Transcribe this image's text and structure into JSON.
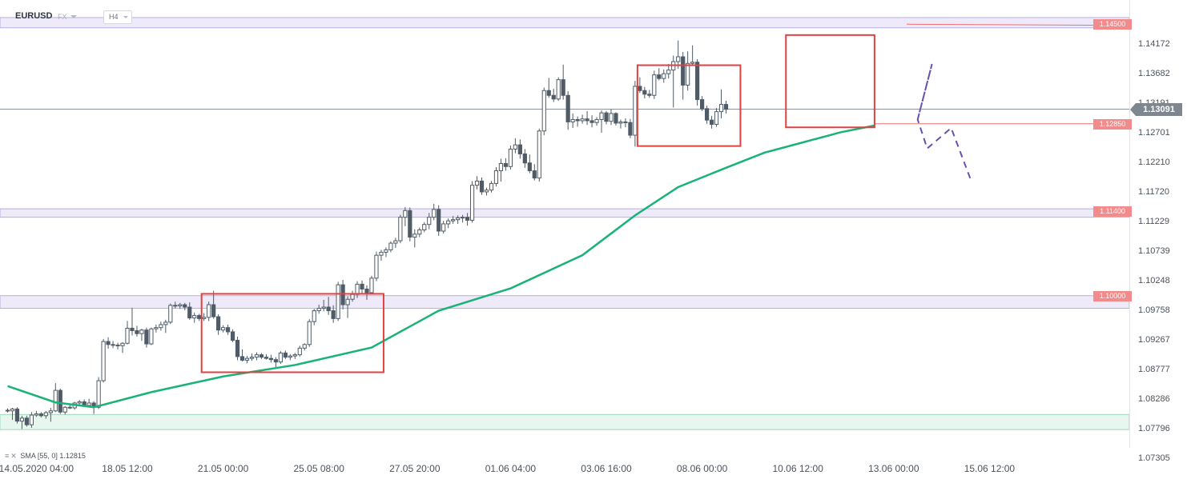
{
  "header": {
    "symbol": "EURUSD",
    "market": "FX",
    "timeframe": "H4"
  },
  "indicator": {
    "label": "SMA [55, 0] 1.12815"
  },
  "current_price": "1.13091",
  "colors": {
    "candle_up": "#ffffff",
    "candle_down": "#4f5b66",
    "candle_outline": "#4f5b66",
    "sma": "#19b377",
    "level_line": "#f07070",
    "level_tag": "#f28b8b",
    "zone_fill": "#eeeafa",
    "zone_border": "#b9aee0",
    "support_fill": "#e7f7ef",
    "support_border": "#9fd6bd",
    "box": "#e04040",
    "projection": "#6a4fb0",
    "price_tag": "#7e8690"
  },
  "chart_data": {
    "type": "candlestick",
    "title": "",
    "xlabel": "",
    "ylabel": "",
    "ylim": [
      1.07305,
      1.14662
    ],
    "grid": false,
    "y_ticks": [
      "1.14172",
      "1.13682",
      "1.13191",
      "1.12701",
      "1.12210",
      "1.11720",
      "1.11229",
      "1.10739",
      "1.10248",
      "1.09758",
      "1.09267",
      "1.08777",
      "1.08286",
      "1.07796",
      "1.07305"
    ],
    "x_ticks": [
      {
        "label": "14.05.2020  04:00",
        "index": 6
      },
      {
        "label": "18.05  12:00",
        "index": 25
      },
      {
        "label": "21.05  00:00",
        "index": 45
      },
      {
        "label": "25.05  08:00",
        "index": 65
      },
      {
        "label": "27.05  20:00",
        "index": 85
      },
      {
        "label": "01.06  04:00",
        "index": 105
      },
      {
        "label": "03.06  16:00",
        "index": 125
      },
      {
        "label": "08.06  00:00",
        "index": 145
      },
      {
        "label": "10.06  12:00",
        "index": 165
      },
      {
        "label": "13.06  00:00",
        "index": 185
      },
      {
        "label": "15.06  12:00",
        "index": 205
      }
    ],
    "levels": [
      {
        "label": "1.14500",
        "value": 1.145,
        "zone": [
          1.1444,
          1.1461
        ]
      },
      {
        "label": "1.12850",
        "value": 1.1285
      },
      {
        "label": "1.11400",
        "value": 1.114,
        "zone": [
          1.113,
          1.1144
        ]
      },
      {
        "label": "1.10000",
        "value": 1.1,
        "zone": [
          1.0979,
          1.1
        ]
      }
    ],
    "support_zone": [
      1.0778,
      1.0803
    ],
    "boxes": [
      {
        "from_index": 40.5,
        "to_index": 78.5,
        "top": 1.1003,
        "bottom": 1.0873
      },
      {
        "from_index": 131.5,
        "to_index": 153,
        "top": 1.1382,
        "bottom": 1.1248
      },
      {
        "from_index": 162.5,
        "to_index": 181,
        "top": 1.1432,
        "bottom": 1.1279
      }
    ],
    "projection": [
      {
        "index": 190,
        "value": 1.1292
      },
      {
        "index": 193,
        "value": 1.1384
      },
      {
        "index": 190,
        "value": 1.1292
      },
      {
        "index": 192,
        "value": 1.1244
      },
      {
        "index": 197,
        "value": 1.1278
      },
      {
        "index": 201,
        "value": 1.1194
      }
    ],
    "candles": [
      {
        "o": 1.081,
        "h": 1.0813,
        "l": 1.0806,
        "c": 1.0809
      },
      {
        "o": 1.0809,
        "h": 1.0814,
        "l": 1.0794,
        "c": 1.0812
      },
      {
        "o": 1.0812,
        "h": 1.0815,
        "l": 1.0788,
        "c": 1.0792
      },
      {
        "o": 1.0792,
        "h": 1.0801,
        "l": 1.0779,
        "c": 1.0797
      },
      {
        "o": 1.0797,
        "h": 1.0801,
        "l": 1.0783,
        "c": 1.0786
      },
      {
        "o": 1.0786,
        "h": 1.0807,
        "l": 1.0781,
        "c": 1.0802
      },
      {
        "o": 1.0802,
        "h": 1.0809,
        "l": 1.0799,
        "c": 1.0804
      },
      {
        "o": 1.0804,
        "h": 1.0807,
        "l": 1.0798,
        "c": 1.0801
      },
      {
        "o": 1.0801,
        "h": 1.0809,
        "l": 1.0796,
        "c": 1.0806
      },
      {
        "o": 1.0806,
        "h": 1.0814,
        "l": 1.0791,
        "c": 1.0809
      },
      {
        "o": 1.0809,
        "h": 1.0855,
        "l": 1.0807,
        "c": 1.0843
      },
      {
        "o": 1.0843,
        "h": 1.0846,
        "l": 1.0804,
        "c": 1.0807
      },
      {
        "o": 1.0807,
        "h": 1.0817,
        "l": 1.0803,
        "c": 1.0815
      },
      {
        "o": 1.0815,
        "h": 1.0819,
        "l": 1.0812,
        "c": 1.0814
      },
      {
        "o": 1.0814,
        "h": 1.0824,
        "l": 1.0811,
        "c": 1.0822
      },
      {
        "o": 1.0822,
        "h": 1.0827,
        "l": 1.0817,
        "c": 1.0824
      },
      {
        "o": 1.0824,
        "h": 1.0828,
        "l": 1.0818,
        "c": 1.0818
      },
      {
        "o": 1.0818,
        "h": 1.0829,
        "l": 1.0815,
        "c": 1.0822
      },
      {
        "o": 1.0822,
        "h": 1.0825,
        "l": 1.0804,
        "c": 1.0815
      },
      {
        "o": 1.0815,
        "h": 1.0865,
        "l": 1.0812,
        "c": 1.0859
      },
      {
        "o": 1.0859,
        "h": 1.0928,
        "l": 1.0856,
        "c": 1.0924
      },
      {
        "o": 1.0924,
        "h": 1.0931,
        "l": 1.0912,
        "c": 1.0919
      },
      {
        "o": 1.0919,
        "h": 1.0925,
        "l": 1.0913,
        "c": 1.0918
      },
      {
        "o": 1.0918,
        "h": 1.0922,
        "l": 1.0911,
        "c": 1.0917
      },
      {
        "o": 1.0917,
        "h": 1.0923,
        "l": 1.0905,
        "c": 1.0921
      },
      {
        "o": 1.0921,
        "h": 1.0958,
        "l": 1.0919,
        "c": 1.0946
      },
      {
        "o": 1.0946,
        "h": 1.098,
        "l": 1.0934,
        "c": 1.0942
      },
      {
        "o": 1.0942,
        "h": 1.095,
        "l": 1.0932,
        "c": 1.0937
      },
      {
        "o": 1.0937,
        "h": 1.0945,
        "l": 1.0925,
        "c": 1.0943
      },
      {
        "o": 1.0943,
        "h": 1.0947,
        "l": 1.0914,
        "c": 1.092
      },
      {
        "o": 1.092,
        "h": 1.0947,
        "l": 1.0918,
        "c": 1.0945
      },
      {
        "o": 1.0945,
        "h": 1.0952,
        "l": 1.0939,
        "c": 1.0947
      },
      {
        "o": 1.0947,
        "h": 1.0957,
        "l": 1.0942,
        "c": 1.0952
      },
      {
        "o": 1.0952,
        "h": 1.096,
        "l": 1.0938,
        "c": 1.0956
      },
      {
        "o": 1.0956,
        "h": 1.0987,
        "l": 1.0953,
        "c": 1.0984
      },
      {
        "o": 1.0984,
        "h": 1.099,
        "l": 1.0979,
        "c": 1.0983
      },
      {
        "o": 1.0983,
        "h": 1.0988,
        "l": 1.0978,
        "c": 1.0985
      },
      {
        "o": 1.0985,
        "h": 1.0988,
        "l": 1.0976,
        "c": 1.0981
      },
      {
        "o": 1.0981,
        "h": 1.0989,
        "l": 1.096,
        "c": 1.0963
      },
      {
        "o": 1.0963,
        "h": 1.0972,
        "l": 1.0955,
        "c": 1.0967
      },
      {
        "o": 1.0967,
        "h": 1.097,
        "l": 1.0958,
        "c": 1.0962
      },
      {
        "o": 1.0962,
        "h": 1.0971,
        "l": 1.0958,
        "c": 1.0964
      },
      {
        "o": 1.0964,
        "h": 1.099,
        "l": 1.0958,
        "c": 1.0985
      },
      {
        "o": 1.0985,
        "h": 1.1008,
        "l": 1.0962,
        "c": 1.0965
      },
      {
        "o": 1.0965,
        "h": 1.0969,
        "l": 1.0935,
        "c": 1.0943
      },
      {
        "o": 1.0943,
        "h": 1.0951,
        "l": 1.0939,
        "c": 1.0947
      },
      {
        "o": 1.0947,
        "h": 1.0952,
        "l": 1.0935,
        "c": 1.094
      },
      {
        "o": 1.094,
        "h": 1.0944,
        "l": 1.0923,
        "c": 1.0926
      },
      {
        "o": 1.0926,
        "h": 1.0932,
        "l": 1.0893,
        "c": 1.0899
      },
      {
        "o": 1.0899,
        "h": 1.0911,
        "l": 1.0891,
        "c": 1.0893
      },
      {
        "o": 1.0893,
        "h": 1.09,
        "l": 1.0888,
        "c": 1.0896
      },
      {
        "o": 1.0896,
        "h": 1.0904,
        "l": 1.0892,
        "c": 1.0898
      },
      {
        "o": 1.0898,
        "h": 1.0906,
        "l": 1.0893,
        "c": 1.0902
      },
      {
        "o": 1.0902,
        "h": 1.0905,
        "l": 1.0895,
        "c": 1.0898
      },
      {
        "o": 1.0898,
        "h": 1.0903,
        "l": 1.0894,
        "c": 1.0896
      },
      {
        "o": 1.0896,
        "h": 1.0902,
        "l": 1.0889,
        "c": 1.0894
      },
      {
        "o": 1.0894,
        "h": 1.0898,
        "l": 1.0881,
        "c": 1.089
      },
      {
        "o": 1.089,
        "h": 1.0908,
        "l": 1.0887,
        "c": 1.0905
      },
      {
        "o": 1.0905,
        "h": 1.0909,
        "l": 1.0895,
        "c": 1.0898
      },
      {
        "o": 1.0898,
        "h": 1.0903,
        "l": 1.0893,
        "c": 1.09
      },
      {
        "o": 1.09,
        "h": 1.0905,
        "l": 1.0895,
        "c": 1.0902
      },
      {
        "o": 1.0902,
        "h": 1.0917,
        "l": 1.0899,
        "c": 1.0913
      },
      {
        "o": 1.0913,
        "h": 1.0921,
        "l": 1.0909,
        "c": 1.0919
      },
      {
        "o": 1.0919,
        "h": 1.0961,
        "l": 1.0915,
        "c": 1.0957
      },
      {
        "o": 1.0957,
        "h": 1.0978,
        "l": 1.0951,
        "c": 1.0975
      },
      {
        "o": 1.0975,
        "h": 1.0985,
        "l": 1.097,
        "c": 1.0979
      },
      {
        "o": 1.0979,
        "h": 1.0993,
        "l": 1.0974,
        "c": 1.0981
      },
      {
        "o": 1.0981,
        "h": 1.0998,
        "l": 1.0968,
        "c": 1.0975
      },
      {
        "o": 1.0975,
        "h": 1.0984,
        "l": 1.0955,
        "c": 1.0962
      },
      {
        "o": 1.0962,
        "h": 1.1023,
        "l": 1.0958,
        "c": 1.1018
      },
      {
        "o": 1.1018,
        "h": 1.1026,
        "l": 1.0977,
        "c": 1.0985
      },
      {
        "o": 1.0985,
        "h": 1.0999,
        "l": 1.0963,
        "c": 1.0994
      },
      {
        "o": 1.0994,
        "h": 1.1008,
        "l": 1.099,
        "c": 1.1002
      },
      {
        "o": 1.1002,
        "h": 1.1024,
        "l": 1.0996,
        "c": 1.1019
      },
      {
        "o": 1.1019,
        "h": 1.1025,
        "l": 1.1004,
        "c": 1.1011
      },
      {
        "o": 1.1011,
        "h": 1.1017,
        "l": 1.0993,
        "c": 1.1005
      },
      {
        "o": 1.1005,
        "h": 1.1033,
        "l": 1.1002,
        "c": 1.1029
      },
      {
        "o": 1.1029,
        "h": 1.1073,
        "l": 1.1024,
        "c": 1.1067
      },
      {
        "o": 1.1067,
        "h": 1.1076,
        "l": 1.1058,
        "c": 1.1072
      },
      {
        "o": 1.1072,
        "h": 1.108,
        "l": 1.1064,
        "c": 1.1076
      },
      {
        "o": 1.1076,
        "h": 1.109,
        "l": 1.1072,
        "c": 1.1087
      },
      {
        "o": 1.1087,
        "h": 1.1096,
        "l": 1.1079,
        "c": 1.1091
      },
      {
        "o": 1.1091,
        "h": 1.1134,
        "l": 1.1087,
        "c": 1.113
      },
      {
        "o": 1.113,
        "h": 1.1147,
        "l": 1.1115,
        "c": 1.1141
      },
      {
        "o": 1.1141,
        "h": 1.1146,
        "l": 1.109,
        "c": 1.1097
      },
      {
        "o": 1.1097,
        "h": 1.111,
        "l": 1.108,
        "c": 1.1102
      },
      {
        "o": 1.1102,
        "h": 1.1113,
        "l": 1.1097,
        "c": 1.1109
      },
      {
        "o": 1.1109,
        "h": 1.1122,
        "l": 1.1105,
        "c": 1.1118
      },
      {
        "o": 1.1118,
        "h": 1.1137,
        "l": 1.111,
        "c": 1.113
      },
      {
        "o": 1.113,
        "h": 1.1152,
        "l": 1.1125,
        "c": 1.1143
      },
      {
        "o": 1.1143,
        "h": 1.115,
        "l": 1.1099,
        "c": 1.1107
      },
      {
        "o": 1.1107,
        "h": 1.1124,
        "l": 1.1103,
        "c": 1.1119
      },
      {
        "o": 1.1119,
        "h": 1.1128,
        "l": 1.1112,
        "c": 1.1124
      },
      {
        "o": 1.1124,
        "h": 1.1132,
        "l": 1.1119,
        "c": 1.1126
      },
      {
        "o": 1.1126,
        "h": 1.1133,
        "l": 1.1119,
        "c": 1.1129
      },
      {
        "o": 1.1129,
        "h": 1.1134,
        "l": 1.1121,
        "c": 1.113
      },
      {
        "o": 1.113,
        "h": 1.1137,
        "l": 1.1116,
        "c": 1.1125
      },
      {
        "o": 1.1125,
        "h": 1.119,
        "l": 1.1121,
        "c": 1.1183
      },
      {
        "o": 1.1183,
        "h": 1.1198,
        "l": 1.1176,
        "c": 1.119
      },
      {
        "o": 1.119,
        "h": 1.1196,
        "l": 1.1167,
        "c": 1.1172
      },
      {
        "o": 1.1172,
        "h": 1.1179,
        "l": 1.1166,
        "c": 1.1175
      },
      {
        "o": 1.1175,
        "h": 1.119,
        "l": 1.1171,
        "c": 1.1186
      },
      {
        "o": 1.1186,
        "h": 1.1213,
        "l": 1.1181,
        "c": 1.1207
      },
      {
        "o": 1.1207,
        "h": 1.1227,
        "l": 1.1189,
        "c": 1.1219
      },
      {
        "o": 1.1219,
        "h": 1.1228,
        "l": 1.1207,
        "c": 1.1214
      },
      {
        "o": 1.1214,
        "h": 1.1249,
        "l": 1.1209,
        "c": 1.1243
      },
      {
        "o": 1.1243,
        "h": 1.1261,
        "l": 1.1236,
        "c": 1.125
      },
      {
        "o": 1.125,
        "h": 1.1259,
        "l": 1.1227,
        "c": 1.1235
      },
      {
        "o": 1.1235,
        "h": 1.1243,
        "l": 1.1212,
        "c": 1.122
      },
      {
        "o": 1.122,
        "h": 1.1234,
        "l": 1.1203,
        "c": 1.1207
      },
      {
        "o": 1.1207,
        "h": 1.1218,
        "l": 1.1191,
        "c": 1.1195
      },
      {
        "o": 1.1195,
        "h": 1.1277,
        "l": 1.1189,
        "c": 1.1273
      },
      {
        "o": 1.1273,
        "h": 1.1345,
        "l": 1.1266,
        "c": 1.134
      },
      {
        "o": 1.134,
        "h": 1.1361,
        "l": 1.1328,
        "c": 1.1332
      },
      {
        "o": 1.1332,
        "h": 1.1343,
        "l": 1.1321,
        "c": 1.1326
      },
      {
        "o": 1.1326,
        "h": 1.1362,
        "l": 1.1323,
        "c": 1.1358
      },
      {
        "o": 1.1358,
        "h": 1.1383,
        "l": 1.1325,
        "c": 1.1332
      },
      {
        "o": 1.1332,
        "h": 1.1339,
        "l": 1.1275,
        "c": 1.1288
      },
      {
        "o": 1.1288,
        "h": 1.1302,
        "l": 1.1278,
        "c": 1.1292
      },
      {
        "o": 1.1292,
        "h": 1.1297,
        "l": 1.128,
        "c": 1.129
      },
      {
        "o": 1.129,
        "h": 1.13,
        "l": 1.1285,
        "c": 1.1293
      },
      {
        "o": 1.1293,
        "h": 1.1306,
        "l": 1.1283,
        "c": 1.129
      },
      {
        "o": 1.129,
        "h": 1.1299,
        "l": 1.1279,
        "c": 1.1287
      },
      {
        "o": 1.1287,
        "h": 1.1296,
        "l": 1.1282,
        "c": 1.1292
      },
      {
        "o": 1.1292,
        "h": 1.1307,
        "l": 1.127,
        "c": 1.1303
      },
      {
        "o": 1.1303,
        "h": 1.1306,
        "l": 1.1284,
        "c": 1.1289
      },
      {
        "o": 1.1289,
        "h": 1.1309,
        "l": 1.1283,
        "c": 1.1302
      },
      {
        "o": 1.1302,
        "h": 1.1304,
        "l": 1.1282,
        "c": 1.1286
      },
      {
        "o": 1.1286,
        "h": 1.1292,
        "l": 1.1277,
        "c": 1.1288
      },
      {
        "o": 1.1288,
        "h": 1.1294,
        "l": 1.1279,
        "c": 1.1287
      },
      {
        "o": 1.1287,
        "h": 1.1293,
        "l": 1.1261,
        "c": 1.1266
      },
      {
        "o": 1.1266,
        "h": 1.1356,
        "l": 1.1247,
        "c": 1.1347
      },
      {
        "o": 1.1347,
        "h": 1.1362,
        "l": 1.1336,
        "c": 1.134
      },
      {
        "o": 1.134,
        "h": 1.1346,
        "l": 1.1327,
        "c": 1.1334
      },
      {
        "o": 1.1334,
        "h": 1.1341,
        "l": 1.1328,
        "c": 1.1332
      },
      {
        "o": 1.1332,
        "h": 1.1373,
        "l": 1.1326,
        "c": 1.1366
      },
      {
        "o": 1.1366,
        "h": 1.1377,
        "l": 1.1357,
        "c": 1.136
      },
      {
        "o": 1.136,
        "h": 1.1375,
        "l": 1.1353,
        "c": 1.1368
      },
      {
        "o": 1.1368,
        "h": 1.1384,
        "l": 1.136,
        "c": 1.1374
      },
      {
        "o": 1.1374,
        "h": 1.1398,
        "l": 1.1312,
        "c": 1.1388
      },
      {
        "o": 1.1388,
        "h": 1.1423,
        "l": 1.1376,
        "c": 1.1396
      },
      {
        "o": 1.1396,
        "h": 1.1404,
        "l": 1.1325,
        "c": 1.1349
      },
      {
        "o": 1.1349,
        "h": 1.1405,
        "l": 1.134,
        "c": 1.1385
      },
      {
        "o": 1.1385,
        "h": 1.1415,
        "l": 1.1381,
        "c": 1.1387
      },
      {
        "o": 1.1387,
        "h": 1.1392,
        "l": 1.1315,
        "c": 1.1325
      },
      {
        "o": 1.1325,
        "h": 1.1331,
        "l": 1.1306,
        "c": 1.131
      },
      {
        "o": 1.131,
        "h": 1.1315,
        "l": 1.1285,
        "c": 1.1291
      },
      {
        "o": 1.1291,
        "h": 1.1298,
        "l": 1.1277,
        "c": 1.1284
      },
      {
        "o": 1.1284,
        "h": 1.1311,
        "l": 1.128,
        "c": 1.1305
      },
      {
        "o": 1.1305,
        "h": 1.1342,
        "l": 1.1294,
        "c": 1.1317
      },
      {
        "o": 1.1317,
        "h": 1.1323,
        "l": 1.1302,
        "c": 1.1309
      }
    ],
    "sma_55": [
      {
        "index": 0,
        "value": 1.085
      },
      {
        "index": 10,
        "value": 1.0823
      },
      {
        "index": 18,
        "value": 1.0815
      },
      {
        "index": 30,
        "value": 1.084
      },
      {
        "index": 45,
        "value": 1.0866
      },
      {
        "index": 60,
        "value": 1.0885
      },
      {
        "index": 76,
        "value": 1.0914
      },
      {
        "index": 90,
        "value": 1.0975
      },
      {
        "index": 105,
        "value": 1.1012
      },
      {
        "index": 120,
        "value": 1.1067
      },
      {
        "index": 131,
        "value": 1.1133
      },
      {
        "index": 140,
        "value": 1.118
      },
      {
        "index": 150,
        "value": 1.1212
      },
      {
        "index": 158,
        "value": 1.1237
      },
      {
        "index": 166,
        "value": 1.1254
      },
      {
        "index": 174,
        "value": 1.1271
      },
      {
        "index": 181,
        "value": 1.1282
      }
    ]
  }
}
